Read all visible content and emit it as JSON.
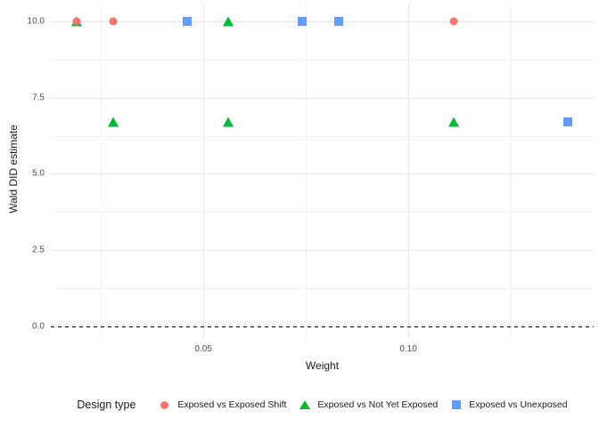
{
  "figure": {
    "background_color": "#FFFFFF",
    "grid_major_color": "#E7E7E7",
    "grid_minor_color": "#F2F2F2",
    "axis_text_color": "#4D4D4D"
  },
  "axes": {
    "y_title": "Wald DID estimate",
    "x_title": "Weight",
    "y_tick_labels": [
      "10.0",
      "7.5",
      "5.0",
      "2.5",
      "0.0"
    ],
    "x_tick_labels": [
      "0.05",
      "0.10"
    ]
  },
  "legend": {
    "title": "Design type",
    "position": "bottom",
    "items": [
      {
        "label": "Exposed vs Exposed Shift",
        "shape": "circle",
        "color": "#F8766D"
      },
      {
        "label": "Exposed vs Not Yet Exposed",
        "shape": "triangle",
        "color": "#00BA38"
      },
      {
        "label": "Exposed vs Unexposed",
        "shape": "square",
        "color": "#619CFF"
      }
    ]
  },
  "chart_data": {
    "type": "scatter",
    "title": "",
    "xlabel": "Weight",
    "ylabel": "Wald DID estimate",
    "xlim": [
      0.0128,
      0.1452
    ],
    "ylim": [
      -0.41,
      10.55
    ],
    "x_tick_values": [
      0.05,
      0.1
    ],
    "y_tick_values": [
      10.0,
      7.5,
      5.0,
      2.5,
      0.0
    ],
    "x_minor_values": [
      0.025,
      0.075,
      0.125
    ],
    "y_minor_values": [
      8.75,
      6.25,
      3.75,
      1.25
    ],
    "grid": true,
    "reference_line": {
      "y": 0.0,
      "style": "dashed",
      "color": "#000000"
    },
    "series": [
      {
        "name": "Exposed vs Exposed Shift",
        "shape": "circle",
        "color": "#F8766D",
        "points": [
          {
            "x": 0.019,
            "y": 10.0
          },
          {
            "x": 0.028,
            "y": 10.0
          },
          {
            "x": 0.111,
            "y": 10.0
          }
        ]
      },
      {
        "name": "Exposed vs Not Yet Exposed",
        "shape": "triangle",
        "color": "#00BA38",
        "points": [
          {
            "x": 0.019,
            "y": 10.0
          },
          {
            "x": 0.056,
            "y": 10.0
          },
          {
            "x": 0.028,
            "y": 6.7
          },
          {
            "x": 0.056,
            "y": 6.7
          },
          {
            "x": 0.111,
            "y": 6.7
          }
        ]
      },
      {
        "name": "Exposed vs Unexposed",
        "shape": "square",
        "color": "#619CFF",
        "points": [
          {
            "x": 0.046,
            "y": 10.0
          },
          {
            "x": 0.074,
            "y": 10.0
          },
          {
            "x": 0.083,
            "y": 10.0
          },
          {
            "x": 0.139,
            "y": 6.7
          }
        ]
      }
    ]
  }
}
